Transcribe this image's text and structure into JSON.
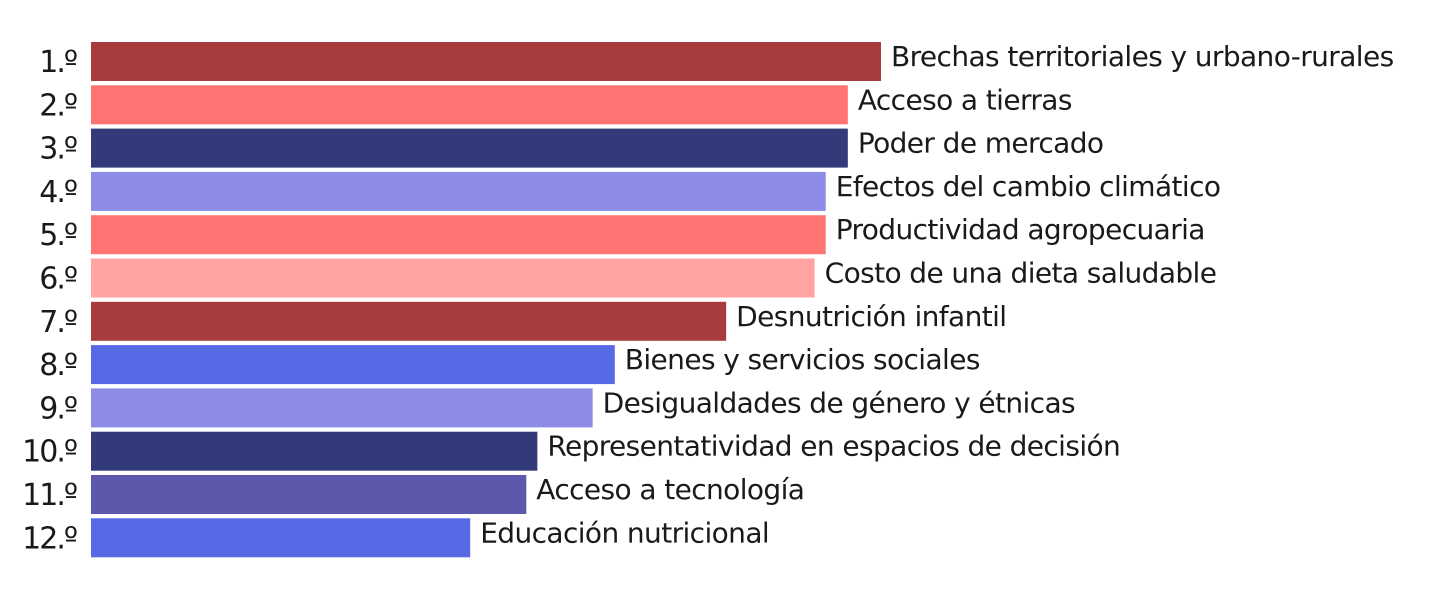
{
  "chart_data": {
    "type": "bar",
    "orientation": "horizontal",
    "value_unit": "relative length, percent of longest bar (no values printed)",
    "grid": false,
    "ranks": [
      "1.º",
      "2.º",
      "3.º",
      "4.º",
      "5.º",
      "6.º",
      "7.º",
      "8.º",
      "9.º",
      "10.º",
      "11.º",
      "12.º"
    ],
    "categories": [
      "Brechas territoriales y urbano-rurales",
      "Acceso a tierras",
      "Poder de mercado",
      "Efectos del cambio climático",
      "Productividad agropecuaria",
      "Costo de una dieta saludable",
      "Desnutrición infantil",
      "Bienes y servicios sociales",
      "Desigualdades de género y étnicas",
      "Representatividad en espacios de decisión",
      "Acceso a tecnología",
      "Educación nutricional"
    ],
    "values": [
      100,
      95.8,
      95.8,
      93.0,
      93.0,
      91.6,
      80.4,
      66.3,
      63.5,
      56.5,
      55.1,
      48.0
    ],
    "colors": [
      "#a83b3c",
      "#ff7472",
      "#323a79",
      "#8c8ce6",
      "#ff7472",
      "#ffa3a3",
      "#a83b3c",
      "#5769e4",
      "#8c8ce6",
      "#323a79",
      "#5e58ad",
      "#5769e4"
    ]
  }
}
